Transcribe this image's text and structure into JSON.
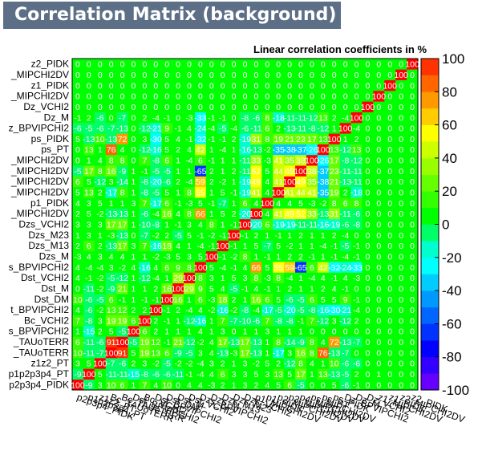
{
  "chart_data": {
    "type": "heatmap",
    "title": "Correlation Matrix (background)",
    "subtitle": "Linear correlation coefficients in %",
    "variables": [
      "p2p3p4_PIDK",
      "p1p2p3p4_PT",
      "z1z2_PT",
      "TAUoTERR",
      "TAUoTERR_2",
      "BPVIPCHI2",
      "Bc_VCHI2",
      "BPVIPCHI2_2",
      "Dst_DM",
      "Dst_M",
      "Dst_VCHI2",
      "BPVIPCHI2_3",
      "Dzs_M",
      "Dzs_M13",
      "Dzs_M23",
      "Dzs_VCHI2",
      "MIPCHI2DV",
      "p1_PIDK",
      "MIPCHI2DV_2",
      "MIPCHI2DV_3",
      "MIPCHI2DV_4",
      "MIPCHI2DV_5",
      "ps_PT",
      "ps_PIDK",
      "BPVIPCHI2_4",
      "Dz_M",
      "Dz_VCHI2",
      "MIPCHI2DV_6",
      "z1_PIDK",
      "MIPCHI2DV_7",
      "z2_PIDK"
    ],
    "y_tick_labels": [
      "p2p3p4_PIDK",
      "p1p2p3p4_PT",
      "z1z2_PT",
      "_TAUoTERR",
      "_TAUoTERR",
      "s_BPVIPCHI2",
      "Bc_VCHI2",
      "t_BPVIPCHI2",
      "Dst_DM",
      "Dst_M",
      "Dst_VCHI2",
      "s_BPVIPCHI2",
      "Dzs_M",
      "Dzs_M13",
      "Dzs_M23",
      "Dzs_VCHI2",
      "_MIPCHI2DV",
      "p1_PIDK",
      "_MIPCHI2DV",
      "_MIPCHI2DV",
      "_MIPCHI2DV",
      "_MIPCHI2DV",
      "ps_PT",
      "ps_PIDK",
      "z_BPVIPCHI2",
      "Dz_M",
      "Dz_VCHI2",
      "_MIPCHI2DV",
      "z1_PIDK",
      "_MIPCHI2DV",
      "z2_PIDK"
    ],
    "x_tick_labels": [
      "p2p3p4_PIDK",
      "p1p2p3p4_PT",
      "z1z2_PT",
      "Bc_TAUoTERR",
      "Bc_TAUoTERR",
      "Dst_BPVIPCHI2",
      "Bc_VCHI2",
      "Dst_BPVIPCHI2",
      "Dst_DM",
      "Dst_M",
      "Dst_VCHI2",
      "Dzs_BPVIPCHI2",
      "Dzs_M",
      "Dzs_M13",
      "Dzs_M23",
      "Dzs_VCHI2",
      "p1_MIPCHI2DV",
      "p1_PIDK",
      "p2_MIPCHI2DV",
      "p3_MIPCHI2DV",
      "p4_MIPCHI2DV",
      "ps_MIPCHI2DV",
      "ps_PT",
      "ps_PIDK",
      "Dz_BPVIPCHI2",
      "Dz_M",
      "Dz_VCHI2",
      "z1_MIPCHI2DV",
      "z1_PIDK",
      "z2_MIPCHI2DV",
      "z2_PIDK"
    ],
    "matrix_order": "rows and columns follow 'variables' from bottom (row 0) to top (row 30)",
    "values": [
      [
        100,
        -9,
        3,
        10,
        6,
        1,
        7,
        4,
        10,
        0,
        4,
        4,
        -3,
        2,
        1,
        3,
        2,
        4,
        5,
        6,
        -5,
        0,
        0,
        5,
        -6,
        -1,
        0,
        0,
        0,
        0,
        0
      ],
      [
        -9,
        100,
        5,
        -11,
        -11,
        -15,
        -8,
        -6,
        -6,
        -11,
        -1,
        -4,
        4,
        6,
        3,
        3,
        5,
        3,
        13,
        5,
        17,
        1,
        13,
        -13,
        -5,
        2,
        0,
        1,
        0,
        0,
        0
      ],
      [
        3,
        5,
        100,
        -7,
        -6,
        2,
        3,
        -2,
        -5,
        -2,
        -2,
        -4,
        3,
        2,
        1,
        3,
        -2,
        5,
        2,
        -12,
        8,
        4,
        1,
        10,
        -6,
        -6,
        0,
        0,
        0,
        0,
        0
      ],
      [
        10,
        -11,
        -7,
        100,
        91,
        5,
        19,
        13,
        6,
        -9,
        -5,
        3,
        4,
        -13,
        -3,
        17,
        -13,
        1,
        -17,
        3,
        16,
        8,
        76,
        -13,
        -7,
        0,
        0,
        0,
        0,
        0,
        0
      ],
      [
        6,
        -11,
        -6,
        91,
        100,
        -5,
        19,
        12,
        -1,
        21,
        -12,
        -2,
        4,
        17,
        -13,
        17,
        -13,
        1,
        8,
        -14,
        -9,
        8,
        4,
        72,
        -13,
        -7,
        0,
        0,
        0,
        0,
        0
      ],
      [
        1,
        -15,
        2,
        5,
        -5,
        100,
        6,
        2,
        1,
        1,
        1,
        4,
        1,
        3,
        0,
        1,
        1,
        3,
        1,
        1,
        1,
        0,
        0,
        0,
        0,
        0,
        0,
        0,
        0,
        0,
        0
      ],
      [
        7,
        -8,
        3,
        19,
        19,
        6,
        100,
        2,
        -1,
        1,
        -12,
        -16,
        1,
        7,
        -7,
        -10,
        -6,
        7,
        -8,
        -8,
        -1,
        7,
        -12,
        3,
        -12,
        2,
        0,
        0,
        0,
        0,
        0
      ],
      [
        4,
        -6,
        -2,
        13,
        12,
        2,
        2,
        100,
        -1,
        2,
        -4,
        4,
        -2,
        -16,
        -2,
        -8,
        -4,
        -17,
        -5,
        -20,
        -5,
        -8,
        -16,
        -30,
        -21,
        -4,
        0,
        0,
        0,
        0,
        0
      ],
      [
        10,
        -6,
        -5,
        6,
        -1,
        1,
        -1,
        -1,
        100,
        16,
        1,
        6,
        -3,
        18,
        2,
        1,
        16,
        6,
        5,
        -6,
        -5,
        6,
        5,
        5,
        9,
        -1,
        0,
        0,
        0,
        0,
        0
      ],
      [
        0,
        -11,
        -2,
        -9,
        21,
        1,
        1,
        2,
        16,
        100,
        29,
        9,
        5,
        4,
        -5,
        -1,
        4,
        -1,
        1,
        2,
        1,
        1,
        2,
        4,
        -1,
        0,
        0,
        0,
        0,
        0,
        0
      ],
      [
        4,
        -1,
        -2,
        -5,
        -12,
        1,
        -12,
        -4,
        1,
        29,
        100,
        8,
        3,
        1,
        5,
        3,
        8,
        -3,
        8,
        -4,
        1,
        -4,
        4,
        -1,
        4,
        -3,
        0,
        0,
        0,
        0,
        0
      ],
      [
        4,
        -4,
        -4,
        3,
        -2,
        4,
        -16,
        4,
        6,
        9,
        8,
        100,
        5,
        -4,
        -1,
        4,
        66,
        5,
        55,
        59,
        -65,
        6,
        42,
        -32,
        -24,
        -33,
        0,
        0,
        0,
        0,
        0
      ],
      [
        -3,
        4,
        3,
        4,
        4,
        1,
        1,
        -2,
        -3,
        5,
        3,
        5,
        100,
        -1,
        -2,
        8,
        1,
        -1,
        1,
        2,
        2,
        -1,
        1,
        -1,
        -4,
        -1,
        0,
        0,
        0,
        0,
        0
      ],
      [
        2,
        6,
        2,
        -13,
        17,
        3,
        7,
        -16,
        18,
        4,
        1,
        -4,
        -1,
        100,
        -1,
        1,
        5,
        -7,
        5,
        -2,
        1,
        1,
        -4,
        -1,
        -5,
        -1,
        0,
        0,
        0,
        0,
        0
      ],
      [
        1,
        3,
        1,
        -3,
        -13,
        0,
        -7,
        -2,
        2,
        -5,
        5,
        -1,
        -2,
        -1,
        100,
        -1,
        2,
        1,
        -1,
        1,
        2,
        1,
        1,
        2,
        -4,
        0,
        0,
        0,
        0,
        0,
        0
      ],
      [
        3,
        3,
        3,
        17,
        17,
        1,
        -10,
        -8,
        1,
        -1,
        3,
        4,
        8,
        1,
        -1,
        100,
        -20,
        6,
        -19,
        -19,
        -11,
        -11,
        -16,
        -19,
        -6,
        -8,
        0,
        0,
        0,
        0,
        0
      ],
      [
        2,
        5,
        -2,
        -13,
        -13,
        1,
        -6,
        -4,
        16,
        4,
        8,
        66,
        1,
        5,
        2,
        -20,
        100,
        4,
        41,
        49,
        52,
        33,
        -13,
        31,
        -11,
        -6,
        0,
        0,
        0,
        0,
        0
      ],
      [
        4,
        3,
        5,
        1,
        1,
        3,
        7,
        -17,
        6,
        -1,
        -3,
        5,
        -1,
        -7,
        1,
        6,
        4,
        100,
        4,
        4,
        5,
        -3,
        -2,
        8,
        6,
        8,
        0,
        0,
        0,
        0,
        0
      ],
      [
        5,
        13,
        2,
        -17,
        8,
        1,
        -8,
        -5,
        5,
        1,
        8,
        55,
        1,
        5,
        -1,
        -19,
        41,
        4,
        100,
        41,
        44,
        41,
        -35,
        19,
        2,
        -18,
        0,
        0,
        0,
        0,
        0
      ],
      [
        6,
        5,
        -12,
        3,
        -14,
        1,
        -8,
        -20,
        -6,
        2,
        -4,
        59,
        2,
        -2,
        1,
        -19,
        49,
        4,
        41,
        100,
        49,
        35,
        -38,
        21,
        -13,
        -11,
        0,
        0,
        0,
        0,
        0
      ],
      [
        -5,
        17,
        8,
        16,
        -9,
        1,
        -1,
        -5,
        -5,
        1,
        1,
        -65,
        2,
        1,
        2,
        -11,
        52,
        5,
        44,
        49,
        100,
        38,
        -37,
        23,
        -11,
        -11,
        0,
        0,
        0,
        0,
        0
      ],
      [
        0,
        1,
        4,
        8,
        8,
        0,
        7,
        -8,
        6,
        1,
        -4,
        6,
        -1,
        1,
        1,
        -11,
        33,
        -3,
        41,
        35,
        38,
        100,
        -26,
        17,
        -8,
        -12,
        0,
        0,
        0,
        0,
        0
      ],
      [
        0,
        13,
        1,
        76,
        4,
        0,
        -12,
        -16,
        5,
        2,
        4,
        42,
        1,
        -4,
        1,
        -16,
        -13,
        -2,
        -35,
        -38,
        -37,
        -26,
        100,
        13,
        -12,
        13,
        0,
        0,
        0,
        0,
        0
      ],
      [
        5,
        -13,
        10,
        -13,
        72,
        0,
        3,
        -30,
        5,
        4,
        -1,
        -32,
        -1,
        -1,
        2,
        -19,
        31,
        8,
        19,
        21,
        23,
        17,
        13,
        100,
        1,
        2,
        0,
        0,
        0,
        0,
        0
      ],
      [
        -6,
        -5,
        -6,
        -7,
        -13,
        0,
        -12,
        -21,
        9,
        -1,
        4,
        -24,
        -4,
        -5,
        -4,
        -6,
        -11,
        6,
        2,
        -13,
        -11,
        -8,
        -12,
        1,
        100,
        -4,
        0,
        0,
        0,
        0,
        0
      ],
      [
        -1,
        2,
        -6,
        0,
        -7,
        0,
        2,
        -4,
        -1,
        0,
        -3,
        -33,
        -1,
        -1,
        0,
        -8,
        -6,
        8,
        -18,
        -11,
        -11,
        -12,
        13,
        2,
        -4,
        100,
        0,
        0,
        0,
        0,
        0
      ],
      [
        0,
        0,
        0,
        0,
        0,
        0,
        0,
        0,
        0,
        0,
        0,
        0,
        0,
        0,
        0,
        0,
        0,
        0,
        0,
        0,
        0,
        0,
        0,
        0,
        0,
        0,
        100,
        0,
        0,
        0,
        0
      ],
      [
        0,
        0,
        0,
        0,
        0,
        0,
        0,
        0,
        0,
        0,
        0,
        0,
        0,
        0,
        0,
        0,
        0,
        0,
        0,
        0,
        0,
        0,
        0,
        0,
        0,
        0,
        0,
        100,
        0,
        0,
        0
      ],
      [
        0,
        0,
        0,
        0,
        0,
        0,
        0,
        0,
        0,
        0,
        0,
        0,
        0,
        0,
        0,
        0,
        0,
        0,
        0,
        0,
        0,
        0,
        0,
        0,
        0,
        0,
        0,
        0,
        100,
        0,
        0
      ],
      [
        0,
        0,
        0,
        0,
        0,
        0,
        0,
        0,
        0,
        0,
        0,
        0,
        0,
        0,
        0,
        0,
        0,
        0,
        0,
        0,
        0,
        0,
        0,
        0,
        0,
        0,
        0,
        0,
        0,
        100,
        0
      ],
      [
        0,
        0,
        0,
        0,
        0,
        0,
        0,
        0,
        0,
        0,
        0,
        0,
        0,
        0,
        0,
        0,
        0,
        0,
        0,
        0,
        0,
        0,
        0,
        0,
        0,
        0,
        0,
        0,
        0,
        0,
        100
      ]
    ],
    "zlim": [
      -100,
      100
    ],
    "z_ticks": [
      -100,
      -80,
      -60,
      -40,
      -20,
      0,
      20,
      40,
      60,
      80,
      100
    ],
    "colorscale": [
      {
        "v": -100,
        "color": "#6600ff"
      },
      {
        "v": -90,
        "color": "#3300ff"
      },
      {
        "v": -80,
        "color": "#0000ff"
      },
      {
        "v": -70,
        "color": "#0033ff"
      },
      {
        "v": -60,
        "color": "#0066ff"
      },
      {
        "v": -50,
        "color": "#0099ff"
      },
      {
        "v": -40,
        "color": "#00ccff"
      },
      {
        "v": -30,
        "color": "#00ffff"
      },
      {
        "v": -20,
        "color": "#00ffcc"
      },
      {
        "v": -10,
        "color": "#00ff66"
      },
      {
        "v": 0,
        "color": "#00ff00"
      },
      {
        "v": 10,
        "color": "#33ff00"
      },
      {
        "v": 20,
        "color": "#66ff00"
      },
      {
        "v": 30,
        "color": "#99ff00"
      },
      {
        "v": 40,
        "color": "#ccff00"
      },
      {
        "v": 50,
        "color": "#ffff00"
      },
      {
        "v": 60,
        "color": "#ffcc00"
      },
      {
        "v": 70,
        "color": "#ff9900"
      },
      {
        "v": 80,
        "color": "#ff6600"
      },
      {
        "v": 90,
        "color": "#ff3300"
      },
      {
        "v": 100,
        "color": "#ff0000"
      }
    ]
  }
}
